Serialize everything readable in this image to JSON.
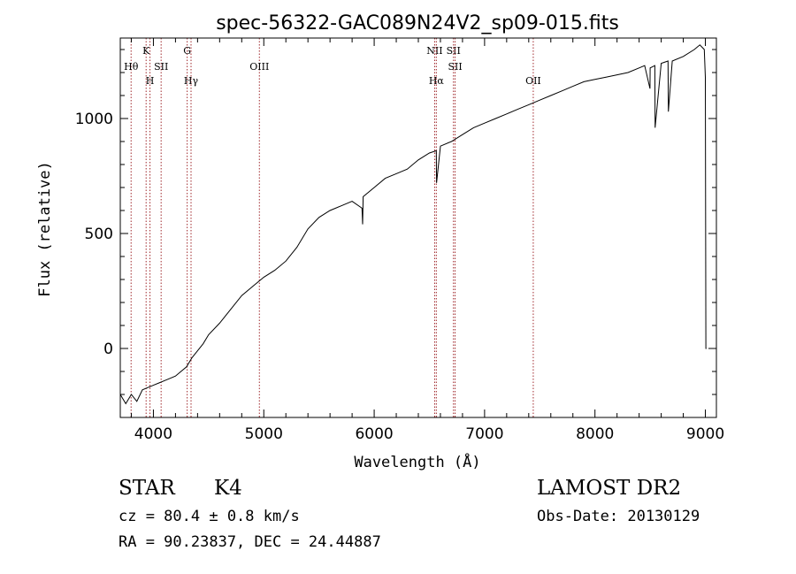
{
  "chart_data": {
    "type": "line",
    "title": "spec-56322-GAC089N24V2_sp09-015.fits",
    "xlabel": "Wavelength (Å)",
    "ylabel": "Flux (relative)",
    "xlim": [
      3700,
      9100
    ],
    "ylim": [
      -300,
      1350
    ],
    "x_ticks": [
      4000,
      5000,
      6000,
      7000,
      8000,
      9000
    ],
    "y_ticks": [
      0,
      500,
      1000
    ],
    "x_tick_labels": [
      "4000",
      "5000",
      "6000",
      "7000",
      "8000",
      "9000"
    ],
    "y_tick_labels": [
      "0",
      "500",
      "1000"
    ],
    "grid": false,
    "series": [
      {
        "color": "#000000",
        "x": [
          3700,
          3750,
          3800,
          3850,
          3900,
          3950,
          4000,
          4050,
          4100,
          4150,
          4200,
          4250,
          4300,
          4350,
          4400,
          4450,
          4500,
          4600,
          4700,
          4800,
          4900,
          5000,
          5100,
          5200,
          5300,
          5400,
          5500,
          5600,
          5700,
          5800,
          5890,
          5895,
          5900,
          6000,
          6100,
          6200,
          6300,
          6400,
          6500,
          6563,
          6565,
          6600,
          6700,
          6800,
          6900,
          7000,
          7100,
          7200,
          7300,
          7400,
          7500,
          7600,
          7700,
          7800,
          7900,
          8000,
          8100,
          8200,
          8300,
          8400,
          8450,
          8498,
          8500,
          8542,
          8545,
          8600,
          8662,
          8665,
          8700,
          8800,
          8900,
          8950,
          8990,
          9000,
          9005,
          9010
        ],
        "y": [
          -200,
          -240,
          -200,
          -230,
          -180,
          -170,
          -160,
          -150,
          -140,
          -130,
          -120,
          -100,
          -80,
          -40,
          -10,
          20,
          60,
          110,
          170,
          230,
          270,
          310,
          340,
          380,
          440,
          520,
          570,
          600,
          620,
          640,
          610,
          540,
          660,
          700,
          740,
          760,
          780,
          820,
          850,
          860,
          720,
          880,
          900,
          930,
          960,
          980,
          1000,
          1020,
          1040,
          1060,
          1080,
          1100,
          1120,
          1140,
          1160,
          1170,
          1180,
          1190,
          1200,
          1220,
          1230,
          1130,
          1220,
          1230,
          960,
          1240,
          1250,
          1030,
          1250,
          1270,
          1300,
          1320,
          1300,
          1180,
          0,
          0
        ]
      }
    ],
    "lines": [
      {
        "x": 3798,
        "label": "Hθ",
        "row": 2
      },
      {
        "x": 3934,
        "label": "K",
        "row": 1
      },
      {
        "x": 3969,
        "label": "H",
        "row": 3
      },
      {
        "x": 4070,
        "label": "SII",
        "row": 2
      },
      {
        "x": 4306,
        "label": "G",
        "row": 1
      },
      {
        "x": 4341,
        "label": "Hγ",
        "row": 3
      },
      {
        "x": 4960,
        "label": "OIII",
        "row": 2
      },
      {
        "x": 6548,
        "label": "NII",
        "row": 1
      },
      {
        "x": 6563,
        "label": "Hα",
        "row": 3
      },
      {
        "x": 6718,
        "label": "SII",
        "row": 1
      },
      {
        "x": 6733,
        "label": "SII",
        "row": 2
      },
      {
        "x": 7441,
        "label": "OII",
        "row": 3
      }
    ]
  },
  "info": {
    "class": "STAR",
    "subclass": "K4",
    "survey": "LAMOST DR2",
    "cz": "cz = 80.4 ± 0.8 km/s",
    "obs_date": "Obs-Date: 20130129",
    "coords": "RA =  90.23837, DEC =  24.44887"
  },
  "colors": {
    "spectrum": "#000000",
    "line_markers": "#a0282c",
    "axes": "#000000"
  }
}
